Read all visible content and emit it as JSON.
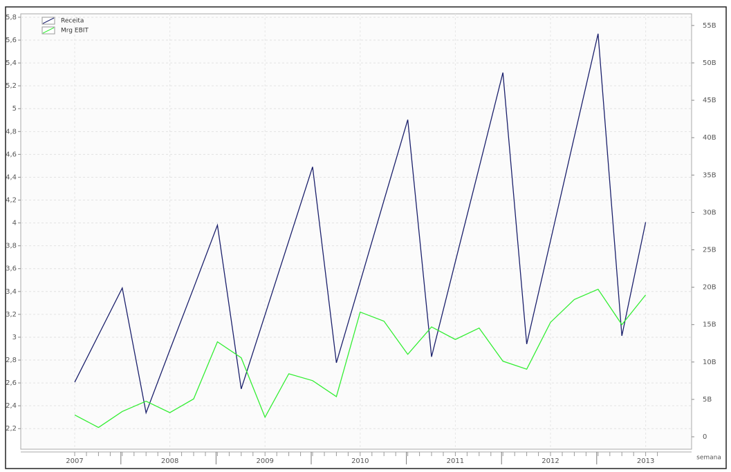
{
  "chart_data": {
    "type": "line",
    "x_label": "semana",
    "categories": [
      "2007",
      null,
      null,
      null,
      "2008",
      null,
      null,
      null,
      "2009",
      null,
      null,
      null,
      "2010",
      null,
      null,
      null,
      "2011",
      null,
      null,
      null,
      "2012",
      null,
      null,
      null,
      "2013"
    ],
    "series": [
      {
        "name": "Receita",
        "color": "#1a1f6b",
        "axis": "y2",
        "values": [
          7.3,
          13.6,
          19.9,
          3.2,
          11.6,
          19.9,
          28.3,
          6.4,
          16.3,
          26.2,
          36.1,
          9.9,
          20.7,
          31.6,
          42.4,
          10.7,
          23.4,
          36.0,
          48.7,
          12.4,
          26.2,
          40.1,
          53.9,
          13.5,
          28.7
        ]
      },
      {
        "name": "Mrg EBIT",
        "color": "#33ee33",
        "values": [
          2.32,
          2.21,
          2.35,
          2.44,
          2.34,
          2.46,
          2.96,
          2.82,
          2.3,
          2.68,
          2.62,
          2.48,
          3.22,
          3.14,
          2.85,
          3.09,
          2.98,
          3.08,
          2.79,
          2.72,
          3.13,
          3.33,
          3.42,
          3.11,
          3.37
        ]
      }
    ],
    "ylim": [
      2.02,
      5.83
    ],
    "yticks": [
      {
        "value": 2.2,
        "label": "2,2"
      },
      {
        "value": 2.4,
        "label": "2,4"
      },
      {
        "value": 2.6,
        "label": "2,6"
      },
      {
        "value": 2.8,
        "label": "2,8"
      },
      3,
      {
        "value": 3.2,
        "label": "3,2"
      },
      {
        "value": 3.4,
        "label": "3,4"
      },
      {
        "value": 3.6,
        "label": "3,6"
      },
      {
        "value": 3.8,
        "label": "3,8"
      },
      4,
      {
        "value": 4.2,
        "label": "4,2"
      },
      {
        "value": 4.4,
        "label": "4,4"
      },
      {
        "value": 4.6,
        "label": "4,6"
      },
      {
        "value": 4.8,
        "label": "4,8"
      },
      5,
      {
        "value": 5.2,
        "label": "5,2"
      },
      {
        "value": 5.4,
        "label": "5,4"
      },
      {
        "value": 5.6,
        "label": "5,6"
      },
      {
        "value": 5.8,
        "label": "5,8"
      }
    ],
    "y2lim": [
      -1.66,
      56.56
    ],
    "y2ticks": [
      0,
      {
        "value": 5,
        "label": "5B"
      },
      {
        "value": 10,
        "label": "10B"
      },
      {
        "value": 15,
        "label": "15B"
      },
      {
        "value": 20,
        "label": "20B"
      },
      {
        "value": 25,
        "label": "25B"
      },
      {
        "value": 30,
        "label": "30B"
      },
      {
        "value": 35,
        "label": "35B"
      },
      {
        "value": 40,
        "label": "40B"
      },
      {
        "value": 45,
        "label": "45B"
      },
      {
        "value": 50,
        "label": "50B"
      },
      {
        "value": 55,
        "label": "55B"
      }
    ],
    "grid": true
  }
}
